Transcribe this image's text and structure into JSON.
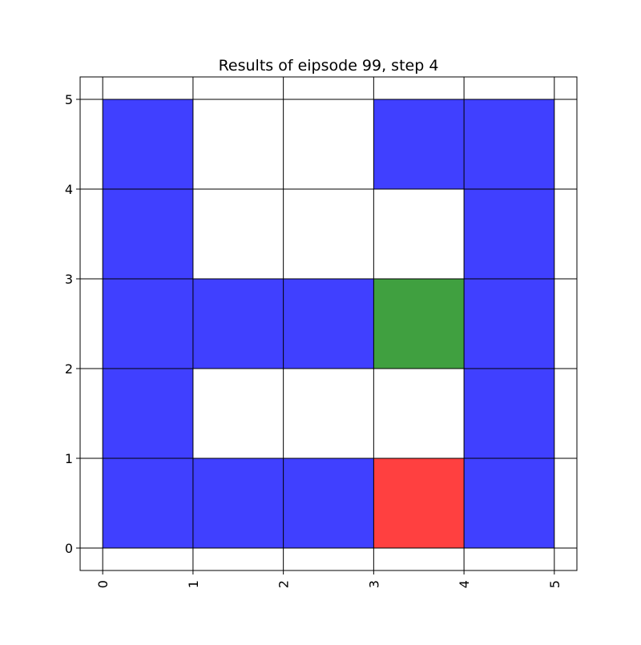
{
  "chart_data": {
    "type": "heatmap",
    "title": "Results of eipsode 99, step 4",
    "xlabel": "",
    "ylabel": "",
    "xlim": [
      -0.25,
      5.25
    ],
    "ylim": [
      -0.25,
      5.25
    ],
    "x_ticks": [
      "0",
      "1",
      "2",
      "3",
      "4",
      "5"
    ],
    "y_ticks": [
      "0",
      "1",
      "2",
      "3",
      "4",
      "5"
    ],
    "x_tick_rotation": 90,
    "grid": true,
    "legend": "none",
    "colors": {
      "wall": "#4040ff",
      "goal": "#40a040",
      "agent": "#ff4040",
      "grid": "#000000"
    },
    "cells": [
      {
        "x": 0,
        "y": 0,
        "kind": "wall"
      },
      {
        "x": 1,
        "y": 0,
        "kind": "wall"
      },
      {
        "x": 2,
        "y": 0,
        "kind": "wall"
      },
      {
        "x": 3,
        "y": 0,
        "kind": "agent"
      },
      {
        "x": 4,
        "y": 0,
        "kind": "wall"
      },
      {
        "x": 0,
        "y": 1,
        "kind": "wall"
      },
      {
        "x": 4,
        "y": 1,
        "kind": "wall"
      },
      {
        "x": 0,
        "y": 2,
        "kind": "wall"
      },
      {
        "x": 1,
        "y": 2,
        "kind": "wall"
      },
      {
        "x": 2,
        "y": 2,
        "kind": "wall"
      },
      {
        "x": 3,
        "y": 2,
        "kind": "goal"
      },
      {
        "x": 4,
        "y": 2,
        "kind": "wall"
      },
      {
        "x": 0,
        "y": 3,
        "kind": "wall"
      },
      {
        "x": 4,
        "y": 3,
        "kind": "wall"
      },
      {
        "x": 0,
        "y": 4,
        "kind": "wall"
      },
      {
        "x": 3,
        "y": 4,
        "kind": "wall"
      },
      {
        "x": 4,
        "y": 4,
        "kind": "wall"
      }
    ]
  }
}
